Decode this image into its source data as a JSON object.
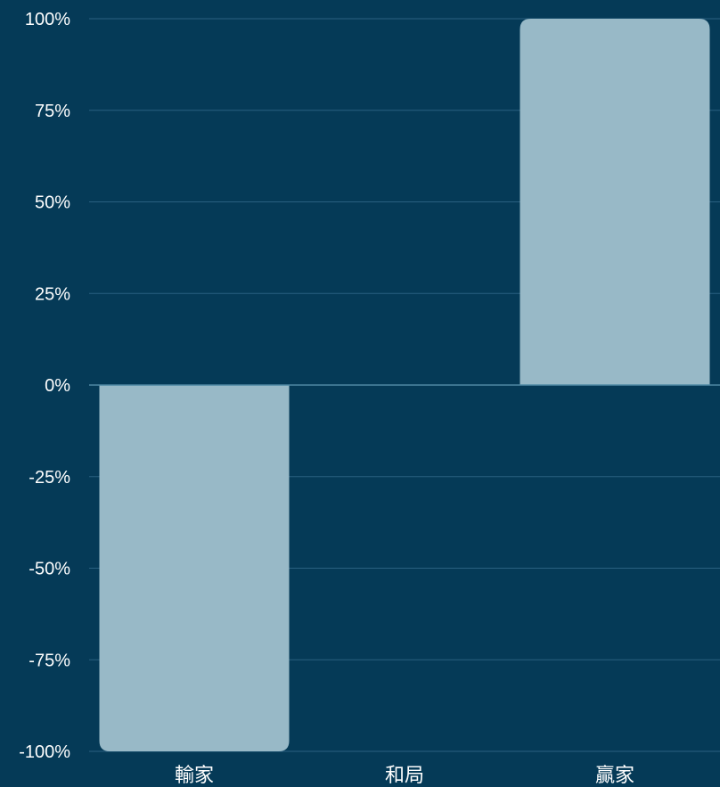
{
  "colors": {
    "background": "#053a57",
    "bar": "#98b9c7",
    "grid": "#2a6080",
    "text": "#ffffff"
  },
  "chart_data": {
    "type": "bar",
    "categories": [
      "輸家",
      "和局",
      "贏家"
    ],
    "values": [
      -100,
      0,
      100
    ],
    "ylim": [
      -100,
      100
    ],
    "yticks": [
      100,
      75,
      50,
      25,
      0,
      -25,
      -50,
      -75,
      -100
    ],
    "ytick_labels": [
      "100%",
      "75%",
      "50%",
      "25%",
      "0%",
      "-25%",
      "-50%",
      "-75%",
      "-100%"
    ],
    "grid": true,
    "legend": "none"
  }
}
